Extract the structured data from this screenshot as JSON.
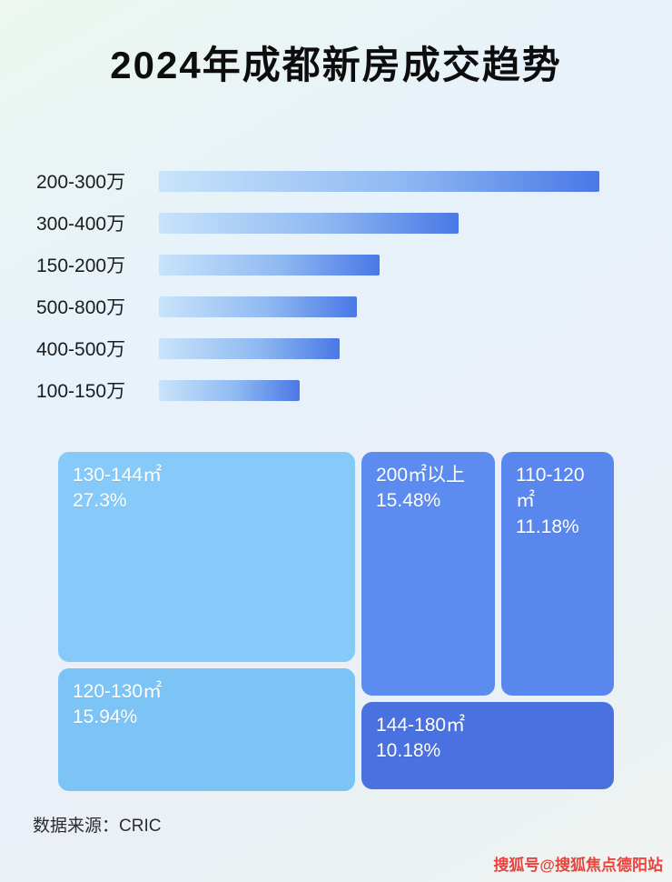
{
  "title": "2024年成都新房成交趋势",
  "source": "数据来源：CRIC",
  "watermark": "搜狐号@搜狐焦点德阳站",
  "colors": {
    "bar_gradient_start": "#C9E4FA",
    "bar_gradient_end": "#4A78E6",
    "label_color": "#1C1C1C",
    "background_tint": "#E9F2F8"
  },
  "chart_data": [
    {
      "type": "bar",
      "orientation": "horizontal",
      "title": "2024年成都新房成交趋势",
      "xlabel": "",
      "ylabel": "",
      "categories": [
        "200-300万",
        "300-400万",
        "150-200万",
        "500-800万",
        "400-500万",
        "100-150万"
      ],
      "values": [
        100,
        68,
        50,
        45,
        41,
        32
      ],
      "value_note": "relative bar lengths, % of longest bar (no numeric labels shown in image)",
      "grid": false,
      "legend": false
    },
    {
      "type": "treemap",
      "title": "",
      "items": [
        {
          "label": "130-144㎡",
          "value_label": "27.3%",
          "value": 27.3,
          "color": "#85CAF8"
        },
        {
          "label": "200㎡以上",
          "value_label": "15.48%",
          "value": 15.48,
          "color": "#5C8CF0"
        },
        {
          "label": "110-120㎡",
          "value_label": "11.18%",
          "value": 11.18,
          "color": "#5A87EE"
        },
        {
          "label": "120-130㎡",
          "value_label": "15.94%",
          "value": 15.94,
          "color": "#7DC4F6"
        },
        {
          "label": "144-180㎡",
          "value_label": "10.18%",
          "value": 10.18,
          "color": "#4A71E0"
        }
      ],
      "legend": false
    }
  ]
}
